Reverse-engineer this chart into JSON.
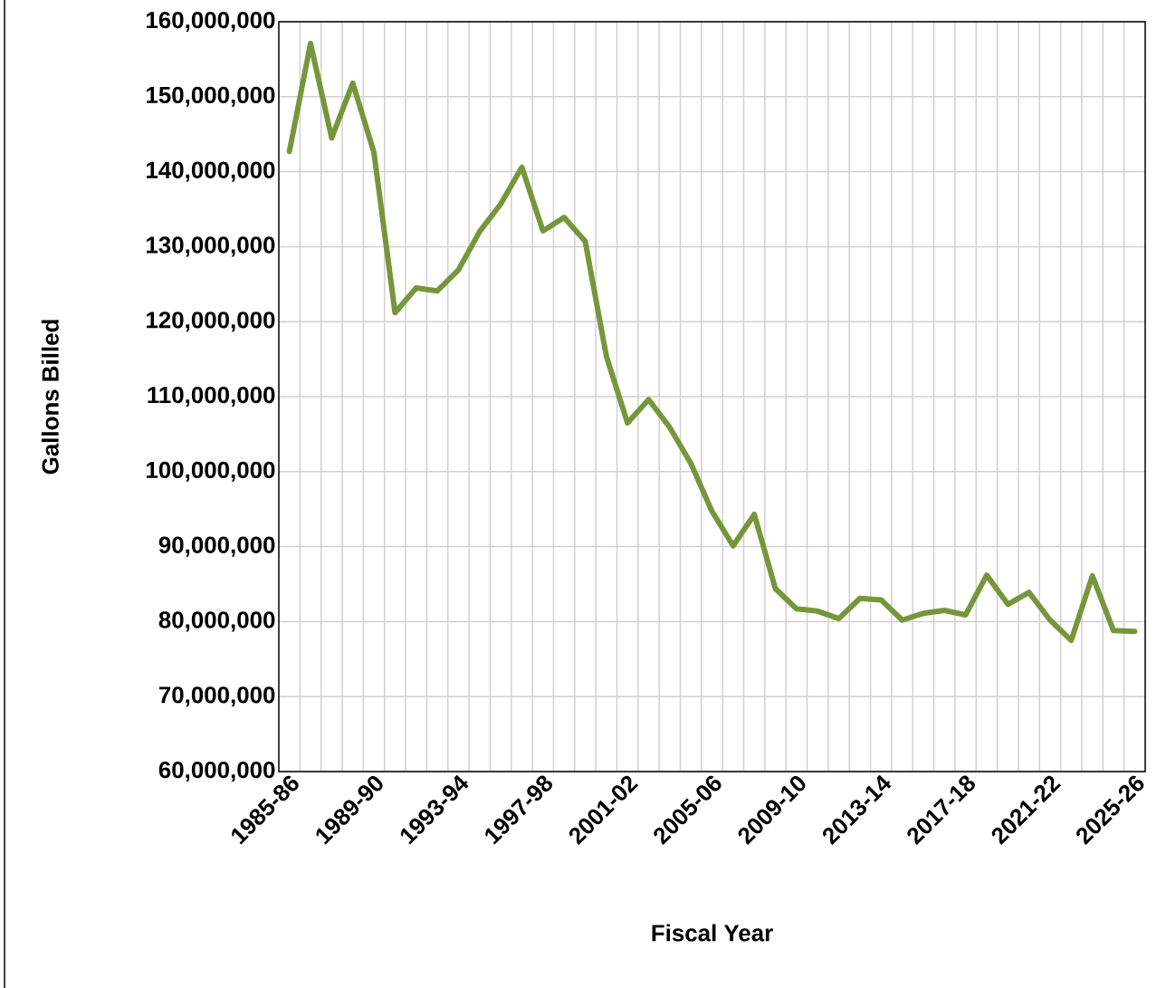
{
  "chart_data": {
    "type": "line",
    "xlabel": "Fiscal Year",
    "ylabel": "Gallons Billed",
    "categories": [
      "1985-86",
      null,
      null,
      null,
      "1989-90",
      null,
      null,
      null,
      "1993-94",
      null,
      null,
      null,
      "1997-98",
      null,
      null,
      null,
      "2001-02",
      null,
      null,
      null,
      "2005-06",
      null,
      null,
      null,
      "2009-10",
      null,
      null,
      null,
      "2013-14",
      null,
      null,
      null,
      "2017-18",
      null,
      null,
      null,
      "2021-22",
      null,
      null,
      null,
      "2025-26"
    ],
    "series": [
      {
        "color": "#77963b",
        "values": [
          142700000,
          157100000,
          144500000,
          151800000,
          142600000,
          121200000,
          124500000,
          124100000,
          126900000,
          132000000,
          135700000,
          140600000,
          132100000,
          133900000,
          130700000,
          115400000,
          106500000,
          109600000,
          105900000,
          101100000,
          94700000,
          90100000,
          94300000,
          84400000,
          81700000,
          81400000,
          80400000,
          83100000,
          82900000,
          80200000,
          81100000,
          81500000,
          80900000,
          86200000,
          82300000,
          83900000,
          80200000,
          77500000,
          86100000,
          78800000,
          78700000
        ]
      }
    ],
    "ylim": [
      60000000,
      160000000
    ],
    "yticks": [
      {
        "value": 60000000,
        "label": "60,000,000"
      },
      {
        "value": 70000000,
        "label": "70,000,000"
      },
      {
        "value": 80000000,
        "label": "80,000,000"
      },
      {
        "value": 90000000,
        "label": "90,000,000"
      },
      {
        "value": 100000000,
        "label": "100,000,000"
      },
      {
        "value": 110000000,
        "label": "110,000,000"
      },
      {
        "value": 120000000,
        "label": "120,000,000"
      },
      {
        "value": 130000000,
        "label": "130,000,000"
      },
      {
        "value": 140000000,
        "label": "140,000,000"
      },
      {
        "value": 150000000,
        "label": "150,000,000"
      },
      {
        "value": 160000000,
        "label": "160,000,000"
      }
    ],
    "grid": true,
    "marker": "none",
    "line_style": "solid"
  }
}
